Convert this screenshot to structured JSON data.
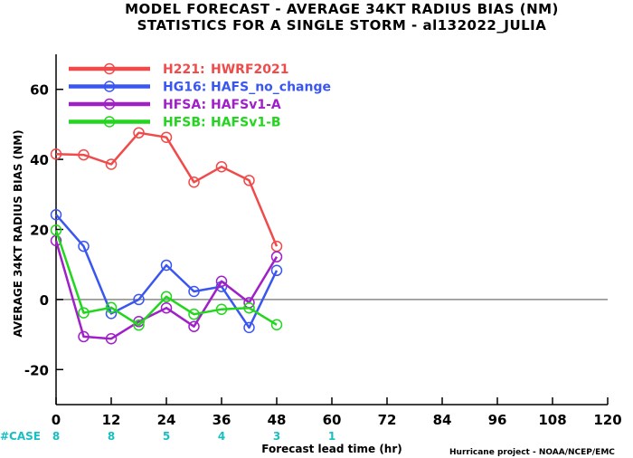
{
  "chart_data": {
    "type": "line",
    "title_line1": "MODEL FORECAST - AVERAGE 34KT RADIUS BIAS (NM)",
    "title_line2": "STATISTICS FOR A SINGLE STORM - al132022_JULIA",
    "xlabel": "Forecast lead time (hr)",
    "ylabel": "AVERAGE 34KT RADIUS BIAS (NM)",
    "xlim": [
      0,
      120
    ],
    "ylim": [
      -30,
      70
    ],
    "x_ticks": [
      0,
      12,
      24,
      36,
      48,
      60,
      72,
      84,
      96,
      108,
      120
    ],
    "y_ticks": [
      -20,
      0,
      20,
      40,
      60
    ],
    "zero_line": true,
    "legend_position": "top-left",
    "case_label": "#CASE",
    "case_counts": [
      {
        "x": 0,
        "value": "8"
      },
      {
        "x": 12,
        "value": "8"
      },
      {
        "x": 24,
        "value": "5"
      },
      {
        "x": 36,
        "value": "4"
      },
      {
        "x": 48,
        "value": "3"
      },
      {
        "x": 60,
        "value": "1"
      }
    ],
    "credit": "Hurricane project - NOAA/NCEP/EMC",
    "series": [
      {
        "name": "H221:",
        "label": "HWRF2021",
        "color": "#f04a4a",
        "x": [
          0,
          6,
          12,
          18,
          24,
          30,
          36,
          42,
          48
        ],
        "values": [
          41.5,
          41.3,
          38.6,
          47.6,
          46.3,
          33.5,
          37.9,
          34.0,
          15.2
        ]
      },
      {
        "name": "HG16:",
        "label": "HAFS_no_change",
        "color": "#3a56f0",
        "x": [
          0,
          6,
          12,
          18,
          24,
          30,
          36,
          42,
          48
        ],
        "values": [
          24.2,
          15.2,
          -4.0,
          0.0,
          9.8,
          2.3,
          3.7,
          -8.0,
          8.3
        ]
      },
      {
        "name": "HFSA:",
        "label": "HAFSv1-A",
        "color": "#a020c8",
        "x": [
          0,
          6,
          12,
          18,
          24,
          30,
          36,
          42,
          48
        ],
        "values": [
          16.8,
          -10.6,
          -11.2,
          -6.3,
          -2.4,
          -7.7,
          5.2,
          -0.9,
          12.2
        ]
      },
      {
        "name": "HFSB:",
        "label": "HAFSv1-B",
        "color": "#22d61e",
        "x": [
          0,
          6,
          12,
          18,
          24,
          30,
          36,
          42,
          48
        ],
        "values": [
          19.8,
          -3.8,
          -2.3,
          -7.3,
          0.8,
          -4.2,
          -2.8,
          -2.4,
          -7.2
        ]
      }
    ]
  }
}
